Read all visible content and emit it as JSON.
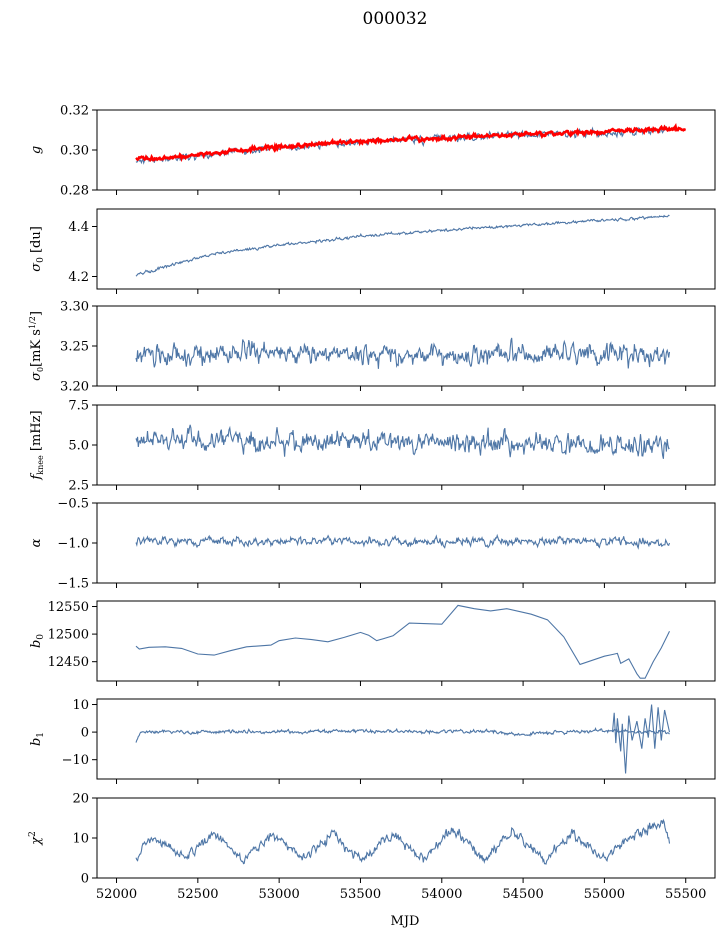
{
  "title": "000032",
  "chart_data": {
    "type": "line",
    "title": "000032",
    "xlabel": "MJD",
    "xlim": [
      51880,
      55680
    ],
    "xticks": [
      52000,
      52500,
      53000,
      53500,
      54000,
      54500,
      55000,
      55500
    ],
    "xtick_labels": [
      "52000",
      "52500",
      "53000",
      "53500",
      "54000",
      "54500",
      "55000",
      "55500"
    ],
    "colors": {
      "series": "#4e76a6",
      "fit": "#ff0000"
    },
    "panels": [
      {
        "id": "g",
        "ylabel": "g",
        "ylim": [
          0.28,
          0.32
        ],
        "yticks": [
          0.28,
          0.3,
          0.32
        ],
        "ytick_labels": [
          "0.28",
          "0.30",
          "0.32"
        ],
        "series": [
          {
            "color": "#4e76a6",
            "noise": 0.0012,
            "seed": 11,
            "x": [
              52120,
              52300,
              52600,
              53000,
              53500,
              54000,
              54500,
              55000,
              55300,
              55400
            ],
            "y": [
              0.2945,
              0.2955,
              0.298,
              0.301,
              0.304,
              0.306,
              0.3075,
              0.3085,
              0.3095,
              0.31
            ]
          },
          {
            "color": "#ff0000",
            "noise": 0.0007,
            "seed": 12,
            "x": [
              52120,
              52300,
              52600,
              53000,
              53500,
              54000,
              54500,
              55000,
              55300,
              55500
            ],
            "y": [
              0.2955,
              0.296,
              0.2985,
              0.3015,
              0.304,
              0.306,
              0.3078,
              0.309,
              0.3105,
              0.3105
            ]
          }
        ]
      },
      {
        "id": "sigma0-du",
        "ylabel": "σ0 [du]",
        "ylim": [
          4.15,
          4.47
        ],
        "yticks": [
          4.2,
          4.4
        ],
        "ytick_labels": [
          "4.2",
          "4.4"
        ],
        "series": [
          {
            "color": "#4e76a6",
            "noise": 0.004,
            "seed": 21,
            "x": [
              52120,
              52300,
              52600,
              53000,
              53500,
              54000,
              54500,
              55000,
              55400
            ],
            "y": [
              4.205,
              4.24,
              4.29,
              4.325,
              4.36,
              4.385,
              4.405,
              4.425,
              4.44
            ]
          }
        ]
      },
      {
        "id": "sigma0-mk",
        "ylabel": "σ0[mK s^1/2]",
        "ylim": [
          3.2,
          3.3
        ],
        "yticks": [
          3.2,
          3.25,
          3.3
        ],
        "ytick_labels": [
          "3.20",
          "3.25",
          "3.30"
        ],
        "series": [
          {
            "color": "#4e76a6",
            "noise": 0.009,
            "seed": 31,
            "x": [
              52120,
              52700,
              53300,
              53900,
              54500,
              55100,
              55400
            ],
            "y": [
              3.238,
              3.24,
              3.242,
              3.238,
              3.24,
              3.24,
              3.236
            ]
          }
        ]
      },
      {
        "id": "fknee",
        "ylabel": "fknee [mHz]",
        "ylim": [
          2.5,
          7.5
        ],
        "yticks": [
          2.5,
          5.0,
          7.5
        ],
        "ytick_labels": [
          "2.5",
          "5.0",
          "7.5"
        ],
        "series": [
          {
            "color": "#4e76a6",
            "noise": 0.45,
            "seed": 41,
            "x": [
              52120,
              52700,
              53300,
              53900,
              54500,
              55100,
              55400
            ],
            "y": [
              5.3,
              5.2,
              5.2,
              5.2,
              5.1,
              4.9,
              4.9
            ]
          }
        ]
      },
      {
        "id": "alpha",
        "ylabel": "α",
        "ylim": [
          -1.5,
          -0.5
        ],
        "yticks": [
          -1.5,
          -1.0,
          -0.5
        ],
        "ytick_labels": [
          "−1.5",
          "−1.0",
          "−0.5"
        ],
        "series": [
          {
            "color": "#4e76a6",
            "noise": 0.035,
            "seed": 51,
            "x": [
              52120,
              52700,
              53300,
              53900,
              54500,
              55100,
              55400
            ],
            "y": [
              -0.98,
              -0.98,
              -0.98,
              -0.98,
              -0.98,
              -0.98,
              -1.0
            ]
          }
        ]
      },
      {
        "id": "b0",
        "ylabel": "b0",
        "ylim": [
          12415,
          12560
        ],
        "yticks": [
          12450,
          12500,
          12550
        ],
        "ytick_labels": [
          "12450",
          "12500",
          "12550"
        ],
        "series": [
          {
            "color": "#4e76a6",
            "noise": 0,
            "seed": 61,
            "x": [
              52120,
              52140,
              52200,
              52300,
              52400,
              52500,
              52600,
              52700,
              52800,
              52950,
              53000,
              53100,
              53200,
              53300,
              53400,
              53500,
              53550,
              53600,
              53700,
              53800,
              54000,
              54100,
              54200,
              54300,
              54400,
              54550,
              54650,
              54750,
              54850,
              55000,
              55050,
              55080,
              55100,
              55150,
              55200,
              55220,
              55250,
              55300,
              55350,
              55400
            ],
            "y": [
              12478,
              12473,
              12476,
              12477,
              12474,
              12464,
              12462,
              12470,
              12477,
              12480,
              12488,
              12493,
              12490,
              12486,
              12494,
              12503,
              12498,
              12488,
              12497,
              12520,
              12518,
              12552,
              12546,
              12542,
              12546,
              12536,
              12526,
              12495,
              12445,
              12460,
              12463,
              12465,
              12447,
              12455,
              12428,
              12420,
              12420,
              12450,
              12475,
              12505
            ]
          }
        ]
      },
      {
        "id": "b1",
        "ylabel": "b1",
        "ylim": [
          -17,
          12
        ],
        "yticks": [
          -10,
          0,
          10
        ],
        "ytick_labels": [
          "−10",
          "0",
          "10"
        ],
        "series": [
          {
            "color": "#4e76a6",
            "noise": 0.45,
            "seed": 71,
            "x": [
              52120,
              52150,
              52300,
              52800,
              53300,
              53800,
              54300,
              54500,
              54700,
              55000,
              55400
            ],
            "y": [
              -3,
              0,
              0.2,
              0,
              0.3,
              0.2,
              0.3,
              -1,
              0,
              0.5,
              0
            ]
          },
          {
            "color": "#4e76a6",
            "noise": 0,
            "seed": 72,
            "x": [
              55050,
              55060,
              55070,
              55080,
              55100,
              55110,
              55130,
              55150,
              55170,
              55200,
              55230,
              55250,
              55270,
              55290,
              55310,
              55330,
              55350,
              55370,
              55400
            ],
            "y": [
              0,
              7,
              -4,
              5,
              -7,
              3,
              -15,
              6,
              -3,
              4,
              -6,
              5,
              -2,
              10,
              -6,
              9,
              -3,
              8,
              0
            ]
          }
        ]
      },
      {
        "id": "chi2",
        "ylabel": "χ2",
        "ylim": [
          0,
          20
        ],
        "yticks": [
          0,
          10,
          20
        ],
        "ytick_labels": [
          "0",
          "10",
          "20"
        ],
        "series": [
          {
            "color": "#4e76a6",
            "noise": 0.9,
            "seed": 81,
            "x": [
              52120,
              52220,
              52420,
              52600,
              52780,
              52960,
              53150,
              53330,
              53520,
              53700,
              53890,
              54070,
              54260,
              54440,
              54630,
              54810,
              55000,
              55180,
              55360,
              55400
            ],
            "y": [
              5,
              10.5,
              5,
              11,
              4.5,
              11,
              5,
              11,
              4.5,
              11,
              5,
              12,
              5,
              11.5,
              4.5,
              11,
              4.5,
              11,
              14,
              9
            ]
          }
        ]
      }
    ]
  }
}
